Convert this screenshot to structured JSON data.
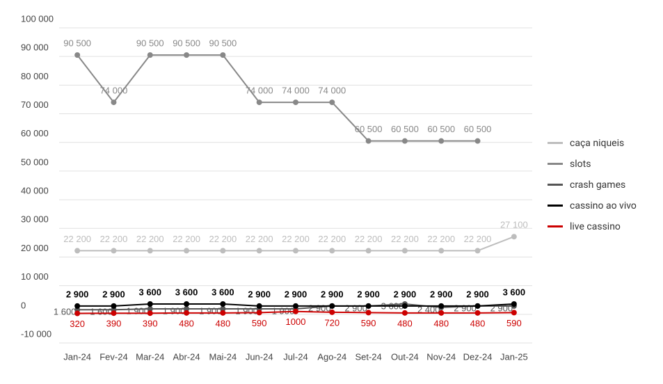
{
  "chart_data": {
    "type": "line",
    "categories": [
      "Jan-24",
      "Fev-24",
      "Mar-24",
      "Abr-24",
      "Mai-24",
      "Jun-24",
      "Jul-24",
      "Ago-24",
      "Set-24",
      "Out-24",
      "Nov-24",
      "Dez-24",
      "Jan-25"
    ],
    "ylim": [
      -10000,
      100000
    ],
    "yticks": [
      {
        "value": -10000,
        "label": "-10 000"
      },
      0,
      {
        "value": 10000,
        "label": "10 000"
      },
      {
        "value": 20000,
        "label": "20 000"
      },
      {
        "value": 30000,
        "label": "30 000"
      },
      {
        "value": 40000,
        "label": "40 000"
      },
      {
        "value": 50000,
        "label": "50 000"
      },
      {
        "value": 60000,
        "label": "60 000"
      },
      {
        "value": 70000,
        "label": "70 000"
      },
      {
        "value": 80000,
        "label": "80 000"
      },
      {
        "value": 90000,
        "label": "90 000"
      },
      {
        "value": 100000,
        "label": "100 000"
      }
    ],
    "grid": true,
    "series": [
      {
        "name": "caça niqueis",
        "color": "#bdbdbd",
        "values": [
          22200,
          22200,
          22200,
          22200,
          22200,
          22200,
          22200,
          22200,
          22200,
          22200,
          22200,
          22200,
          27100
        ],
        "value_labels": [
          "22 200",
          "22 200",
          "22 200",
          "22 200",
          "22 200",
          "22 200",
          "22 200",
          "22 200",
          "22 200",
          "22 200",
          "22 200",
          "22 200",
          "27 100"
        ]
      },
      {
        "name": "slots",
        "color": "#888888",
        "values": [
          90500,
          74000,
          90500,
          90500,
          90500,
          74000,
          74000,
          74000,
          60500,
          60500,
          60500,
          60500,
          null
        ],
        "value_labels": [
          "90 500",
          "74 000",
          "90 500",
          "90 500",
          "90 500",
          "74 000",
          "74 000",
          "74 000",
          "60 500",
          "60 500",
          "60 500",
          "60 500",
          null
        ]
      },
      {
        "name": "crash games",
        "color": "#555555",
        "values": [
          1600,
          1600,
          1900,
          1900,
          1900,
          1900,
          1900,
          2900,
          2900,
          3600,
          2400,
          2900,
          2900
        ],
        "value_labels": [
          "1 600",
          "1 600",
          "1 900",
          "1 900",
          "1 900",
          "1 900",
          "1 900",
          "2 900",
          "2 900",
          "3 600",
          "2 400",
          "2 900",
          "2 900"
        ]
      },
      {
        "name": "cassino ao vivo",
        "color": "#000000",
        "values": [
          2900,
          2900,
          3600,
          3600,
          3600,
          2900,
          2900,
          2900,
          2900,
          2900,
          2900,
          2900,
          3600
        ],
        "value_labels": [
          "2 900",
          "2 900",
          "3 600",
          "3 600",
          "3 600",
          "2 900",
          "2 900",
          "2 900",
          "2 900",
          "2 900",
          "2 900",
          "2 900",
          "3 600"
        ]
      },
      {
        "name": "live cassino",
        "color": "#cc0000",
        "values": [
          320,
          390,
          390,
          480,
          480,
          590,
          1000,
          720,
          590,
          480,
          480,
          480,
          590
        ]
      }
    ]
  }
}
